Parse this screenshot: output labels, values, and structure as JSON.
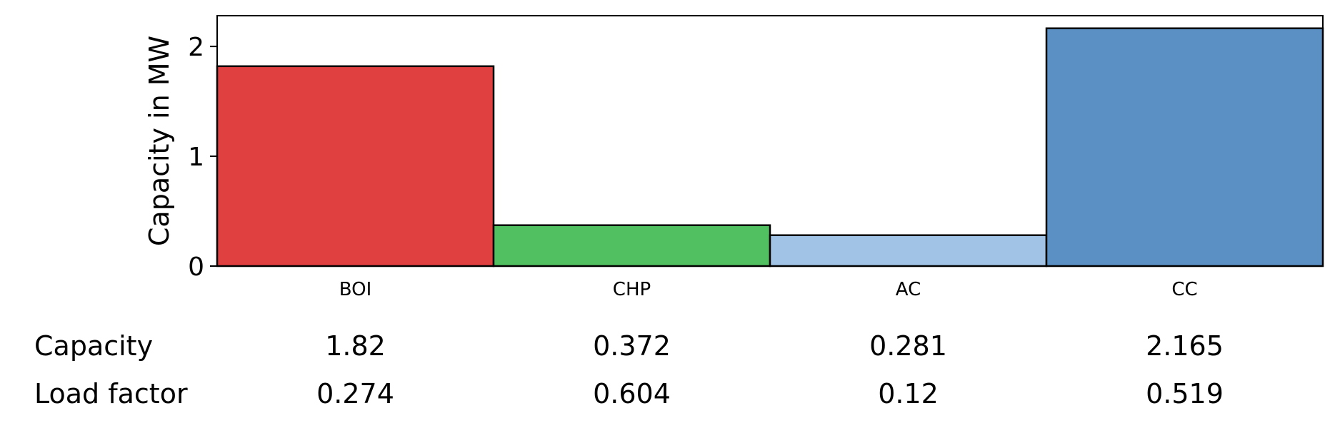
{
  "chart_data": {
    "type": "bar",
    "title": "",
    "xlabel": "",
    "ylabel": "Capacity in MW",
    "categories": [
      "BOI",
      "CHP",
      "AC",
      "CC"
    ],
    "values": [
      1.82,
      0.372,
      0.281,
      2.165
    ],
    "bar_colors": [
      "#e04040",
      "#50c060",
      "#a0c3e6",
      "#5a90c4"
    ],
    "ylim": [
      0,
      2.28
    ],
    "yticks": [
      0,
      1,
      2
    ],
    "grid": false,
    "table": {
      "rows": [
        {
          "label": "Capacity",
          "values": [
            "1.82",
            "0.372",
            "0.281",
            "2.165"
          ]
        },
        {
          "label": "Load factor",
          "values": [
            "0.274",
            "0.604",
            "0.12",
            "0.519"
          ]
        }
      ]
    }
  }
}
